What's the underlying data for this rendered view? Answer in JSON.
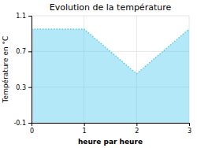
{
  "chart_data": {
    "type": "area",
    "title": "Evolution de la température",
    "x_label": "heure par heure",
    "y_label": "Température en °C",
    "x": [
      0,
      1,
      2,
      3
    ],
    "values": [
      0.95,
      0.95,
      0.45,
      0.95
    ],
    "xlim": [
      0,
      3
    ],
    "ylim": [
      -0.1,
      1.1
    ],
    "xticks": [
      0,
      1,
      2,
      3
    ],
    "yticks": [
      -0.1,
      0.3,
      0.7,
      1.1
    ],
    "color": "#55CCEE",
    "line_style": "dotted",
    "grid": true
  }
}
